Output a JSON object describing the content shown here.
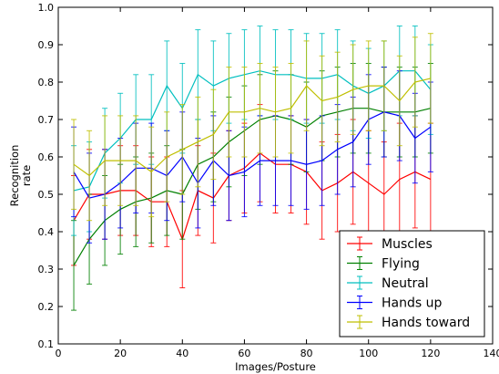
{
  "chart_data": {
    "type": "line",
    "title": "",
    "xlabel": "Images/Posture",
    "ylabel_lines": [
      "Recognition",
      "rate"
    ],
    "xlim": [
      0,
      140
    ],
    "ylim": [
      0.1,
      1.0
    ],
    "xticks": [
      0,
      20,
      40,
      60,
      80,
      100,
      120,
      140
    ],
    "yticks": [
      0.1,
      0.2,
      0.3,
      0.4,
      0.5,
      0.6,
      0.7,
      0.8,
      0.9,
      1.0
    ],
    "xtick_labels": [
      "0",
      "20",
      "40",
      "60",
      "80",
      "100",
      "120",
      "140"
    ],
    "ytick_labels": [
      "0.1",
      "0.2",
      "0.3",
      "0.4",
      "0.5",
      "0.6",
      "0.7",
      "0.8",
      "0.9",
      "1.0"
    ],
    "grid": false,
    "legend_position": "bottom-right",
    "x": [
      5,
      10,
      15,
      20,
      25,
      30,
      35,
      40,
      45,
      50,
      55,
      60,
      65,
      70,
      75,
      80,
      85,
      90,
      95,
      100,
      105,
      110,
      115,
      120
    ],
    "series": [
      {
        "name": "Muscles",
        "color": "#ff0000",
        "values": [
          0.43,
          0.5,
          0.5,
          0.51,
          0.51,
          0.48,
          0.48,
          0.38,
          0.51,
          0.49,
          0.55,
          0.57,
          0.61,
          0.58,
          0.58,
          0.56,
          0.51,
          0.53,
          0.56,
          0.53,
          0.5,
          0.54,
          0.56,
          0.54
        ],
        "errors": [
          0.12,
          0.12,
          0.12,
          0.12,
          0.12,
          0.12,
          0.12,
          0.13,
          0.12,
          0.12,
          0.12,
          0.12,
          0.13,
          0.13,
          0.13,
          0.14,
          0.13,
          0.13,
          0.14,
          0.14,
          0.14,
          0.15,
          0.15,
          0.15
        ]
      },
      {
        "name": "Flying",
        "color": "#008000",
        "values": [
          0.31,
          0.38,
          0.43,
          0.46,
          0.48,
          0.49,
          0.51,
          0.5,
          0.58,
          0.6,
          0.64,
          0.67,
          0.7,
          0.71,
          0.7,
          0.68,
          0.71,
          0.72,
          0.73,
          0.73,
          0.72,
          0.72,
          0.72,
          0.73
        ]
      },
      {
        "name": "Neutral",
        "color": "#00bfbf",
        "values": [
          0.51,
          0.52,
          0.61,
          0.65,
          0.7,
          0.7,
          0.79,
          0.73,
          0.82,
          0.79,
          0.81,
          0.82,
          0.83,
          0.82,
          0.82,
          0.81,
          0.81,
          0.82,
          0.79,
          0.77,
          0.79,
          0.83,
          0.83,
          0.78
        ]
      },
      {
        "name": "Hands up",
        "color": "#0000ff",
        "values": [
          0.56,
          0.49,
          0.5,
          0.53,
          0.57,
          0.57,
          0.55,
          0.6,
          0.53,
          0.59,
          0.55,
          0.56,
          0.59,
          0.59,
          0.59,
          0.58,
          0.59,
          0.62,
          0.64,
          0.7,
          0.72,
          0.71,
          0.65,
          0.68
        ]
      },
      {
        "name": "Hands toward",
        "color": "#bfbf00",
        "values": [
          0.58,
          0.55,
          0.59,
          0.59,
          0.59,
          0.56,
          0.6,
          0.62,
          0.64,
          0.66,
          0.72,
          0.72,
          0.73,
          0.72,
          0.73,
          0.79,
          0.75,
          0.76,
          0.78,
          0.79,
          0.79,
          0.75,
          0.8,
          0.81
        ]
      }
    ]
  }
}
